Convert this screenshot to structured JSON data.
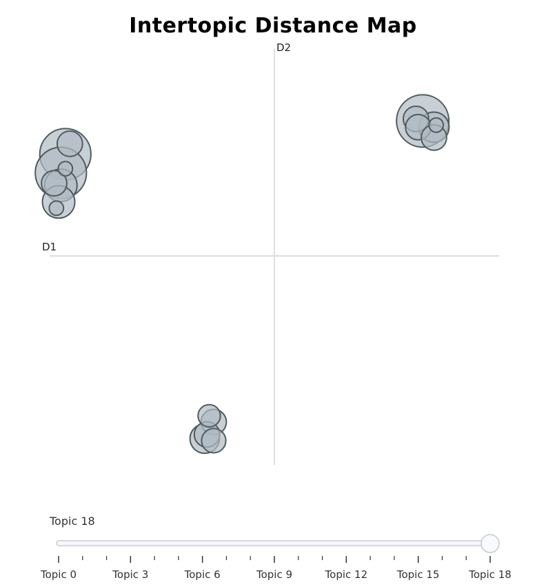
{
  "title": "Intertopic Distance Map",
  "chart_data": {
    "type": "scatter",
    "title": "Intertopic Distance Map",
    "xlabel": "D1",
    "ylabel": "D2",
    "xlim": [
      -10,
      10
    ],
    "ylim": [
      -10,
      10
    ],
    "grid": false,
    "bubble_fill": "#b0bac3",
    "bubble_stroke": "#4f5b5e",
    "axis_color": "#e0e0e0",
    "points": [
      {
        "x": 6.6,
        "y": 6.5,
        "size": 1.0
      },
      {
        "x": 6.3,
        "y": 6.6,
        "size": 0.2
      },
      {
        "x": 6.4,
        "y": 6.2,
        "size": 0.2
      },
      {
        "x": 7.1,
        "y": 6.2,
        "size": 0.3
      },
      {
        "x": 7.2,
        "y": 6.3,
        "size": 0.05
      },
      {
        "x": 7.1,
        "y": 5.7,
        "size": 0.2
      },
      {
        "x": -9.3,
        "y": 4.9,
        "size": 0.95
      },
      {
        "x": -9.1,
        "y": 5.4,
        "size": 0.2
      },
      {
        "x": -9.5,
        "y": 4.0,
        "size": 0.95
      },
      {
        "x": -9.3,
        "y": 4.2,
        "size": 0.05
      },
      {
        "x": -9.5,
        "y": 3.4,
        "size": 0.35
      },
      {
        "x": -9.8,
        "y": 3.5,
        "size": 0.2
      },
      {
        "x": -9.6,
        "y": 2.6,
        "size": 0.35
      },
      {
        "x": -9.7,
        "y": 2.3,
        "size": 0.05
      },
      {
        "x": -2.9,
        "y": -7.7,
        "size": 0.15
      },
      {
        "x": -2.7,
        "y": -8.0,
        "size": 0.2
      },
      {
        "x": -3.0,
        "y": -8.6,
        "size": 0.2
      },
      {
        "x": -3.1,
        "y": -8.8,
        "size": 0.28
      },
      {
        "x": -2.7,
        "y": -8.9,
        "size": 0.18
      }
    ]
  },
  "slider": {
    "current_label": "Topic 18",
    "value": 18,
    "min": 0,
    "max": 18,
    "tick_labels": [
      "Topic 0",
      "Topic 3",
      "Topic 6",
      "Topic 9",
      "Topic 12",
      "Topic 15",
      "Topic 18"
    ],
    "tick_values": [
      0,
      3,
      6,
      9,
      12,
      15,
      18
    ]
  }
}
